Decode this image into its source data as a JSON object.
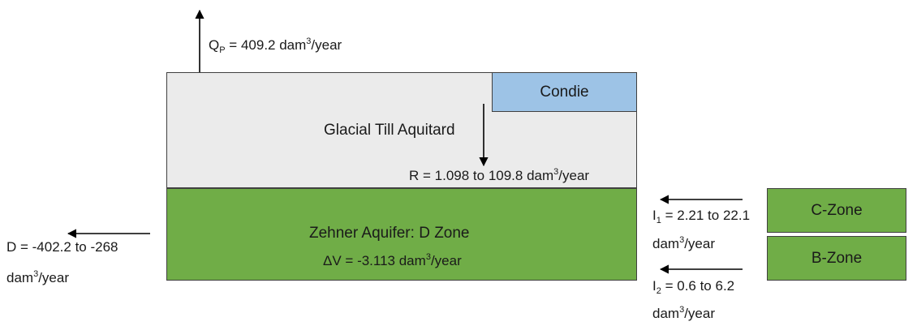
{
  "pumping": {
    "prefix": "Q",
    "sub": "P",
    "text": " = 409.2 dam",
    "sup": "3",
    "unit": "/year"
  },
  "aquitard": {
    "label": "Glacial Till Aquitard"
  },
  "condie": {
    "label": "Condie"
  },
  "recharge": {
    "text": "R = 1.098 to 109.8 dam",
    "sup": "3",
    "unit": "/year"
  },
  "aquifer": {
    "label": "Zehner Aquifer: D Zone"
  },
  "storage": {
    "text": "ΔV = -3.113 dam",
    "sup": "3",
    "unit": "/year"
  },
  "discharge": {
    "line1": "D = -402.2 to -268",
    "line2": "dam",
    "sup": "3",
    "unit": "/year"
  },
  "inflow1": {
    "prefix": "I",
    "sub": "1",
    "text": " = 2.21 to 22.1",
    "line2": "dam",
    "sup": "3",
    "unit": "/year"
  },
  "inflow2": {
    "prefix": "I",
    "sub": "2",
    "text": " = 0.6 to 6.2",
    "line2": "dam",
    "sup": "3",
    "unit": "/year"
  },
  "czone": {
    "label": "C-Zone"
  },
  "bzone": {
    "label": "B-Zone"
  },
  "colors": {
    "aquitard_fill": "#ebebeb",
    "condie_fill": "#9dc3e6",
    "aquifer_fill": "#70ad47",
    "border": "#404040"
  }
}
